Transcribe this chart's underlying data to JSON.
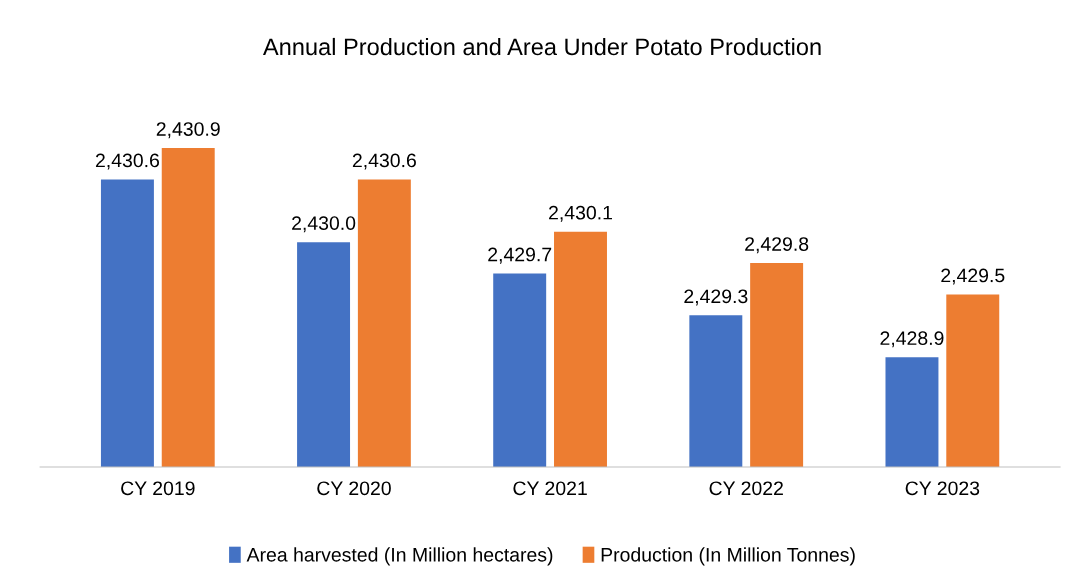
{
  "chart_data": {
    "type": "bar",
    "title": "Annual Production and Area Under Potato Production",
    "categories": [
      "CY 2019",
      "CY 2020",
      "CY 2021",
      "CY 2022",
      "CY 2023"
    ],
    "series": [
      {
        "name": "Area harvested (In Million hectares)",
        "color": "#4472c4",
        "values": [
          2430.6,
          2430.0,
          2429.7,
          2429.3,
          2428.9
        ],
        "value_labels": [
          "2,430.6",
          "2,430.0",
          "2,429.7",
          "2,429.3",
          "2,428.9"
        ]
      },
      {
        "name": "Production (In Million Tonnes)",
        "color": "#ed7d31",
        "values": [
          2430.9,
          2430.6,
          2430.1,
          2429.8,
          2429.5
        ],
        "value_labels": [
          "2,430.9",
          "2,430.6",
          "2,430.1",
          "2,429.8",
          "2,429.5"
        ]
      }
    ],
    "ylim": [
      2427.85,
      2430.9
    ],
    "tick_labels": "x",
    "legend": "bottom"
  }
}
